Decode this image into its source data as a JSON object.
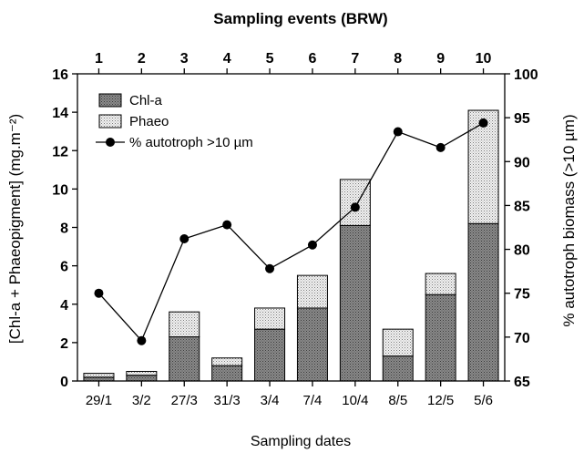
{
  "chart_data": {
    "type": "bar",
    "top_axis_title": "Sampling events (BRW)",
    "top_axis_labels": [
      "1",
      "2",
      "3",
      "4",
      "5",
      "6",
      "7",
      "8",
      "9",
      "10"
    ],
    "categories": [
      "29/1",
      "3/2",
      "27/3",
      "31/3",
      "3/4",
      "7/4",
      "10/4",
      "8/5",
      "12/5",
      "5/6"
    ],
    "xlabel": "Sampling dates",
    "ylabel": "[Chl-a + Phaeopigment] (mg.m⁻²)",
    "ylabel_right": "% autotroph biomass (>10 µm)",
    "ylim": [
      0,
      16
    ],
    "yticks": [
      0,
      2,
      4,
      6,
      8,
      10,
      12,
      14,
      16
    ],
    "ylim_right": [
      65,
      100
    ],
    "yticks_right": [
      65,
      70,
      75,
      80,
      85,
      90,
      95,
      100
    ],
    "grid": false,
    "legend_position": "top-left",
    "series": [
      {
        "name": "Chl-a",
        "kind": "stacked-bar",
        "axis": "left",
        "pattern": "dark-dotted",
        "values": [
          0.2,
          0.3,
          2.3,
          0.8,
          2.7,
          3.8,
          8.1,
          1.3,
          4.5,
          8.2
        ]
      },
      {
        "name": "Phaeo",
        "kind": "stacked-bar",
        "axis": "left",
        "pattern": "light-dotted",
        "values": [
          0.2,
          0.2,
          1.3,
          0.4,
          1.1,
          1.7,
          2.4,
          1.4,
          1.1,
          5.9
        ]
      },
      {
        "name": "% autotroph >10 µm",
        "kind": "line-markers",
        "axis": "right",
        "values": [
          75.0,
          69.6,
          81.2,
          82.8,
          77.8,
          80.5,
          84.8,
          93.4,
          91.6,
          94.4
        ]
      }
    ]
  }
}
